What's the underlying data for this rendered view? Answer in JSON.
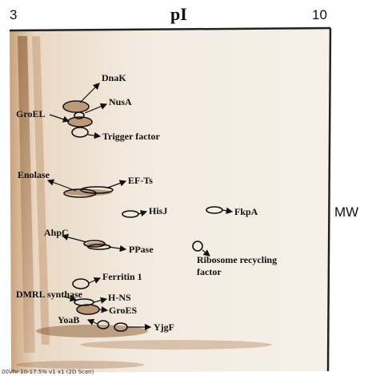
{
  "axis": {
    "left": "3",
    "title": "pI",
    "right": "10",
    "side": "MW"
  },
  "labels": [
    "DnaK",
    "NusA",
    "GroEL",
    "Trigger factor",
    "Enolase",
    "EF-Ts",
    "HisJ",
    "FkpA",
    "AhpC",
    "PPase",
    "Ribosome recycling",
    "factor",
    "Ferritin 1",
    "DMRL synthase",
    "H-NS",
    "GroES",
    "YoaB",
    "YjgF"
  ],
  "caption": "00Vhr 10-17.5% v1 x1 (2D Scan)"
}
